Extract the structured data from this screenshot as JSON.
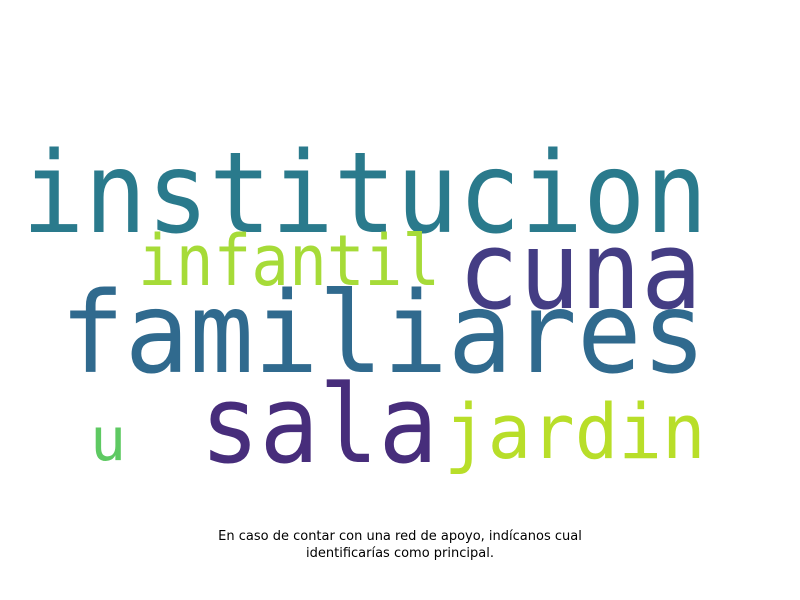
{
  "words": [
    {
      "id": "institucion",
      "text": "institucion",
      "color": "#2a7a8c"
    },
    {
      "id": "cuna",
      "text": "cuna",
      "color": "#443d84"
    },
    {
      "id": "infantil",
      "text": "infantil",
      "color": "#a6db38"
    },
    {
      "id": "familiares",
      "text": "familiares",
      "color": "#306a8e"
    },
    {
      "id": "sala",
      "text": "sala",
      "color": "#472d7b"
    },
    {
      "id": "jardin",
      "text": "jardin",
      "color": "#b8de29"
    },
    {
      "id": "u",
      "text": "u",
      "color": "#5ec962"
    }
  ],
  "caption": {
    "line1": "En caso de contar con una red de apoyo, indícanos cual",
    "line2": "identificarías como principal."
  }
}
